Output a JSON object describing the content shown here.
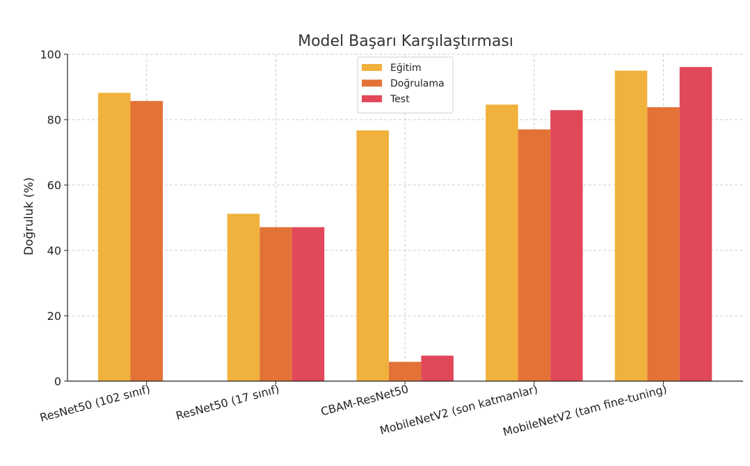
{
  "chart_data": {
    "type": "bar",
    "title": "Model Başarı Karşılaştırması",
    "xlabel": "",
    "ylabel": "Doğruluk (%)",
    "ylim": [
      0,
      100
    ],
    "yticks": [
      "0",
      "20",
      "40",
      "60",
      "80",
      "100"
    ],
    "grid": true,
    "legend_position": "top-center",
    "categories": [
      "ResNet50 (102 sınıf)",
      "ResNet50 (17 sınıf)",
      "CBAM-ResNet50",
      "MobileNetV2 (son katmanlar)",
      "MobileNetV2 (tam fine-tuning)"
    ],
    "series": [
      {
        "name": "Eğitim",
        "color": "#f0b13d",
        "values": [
          88.2,
          51.2,
          76.7,
          84.6,
          95.0
        ]
      },
      {
        "name": "Doğrulama",
        "color": "#e37236",
        "values": [
          85.7,
          47.1,
          5.9,
          77.0,
          83.8
        ]
      },
      {
        "name": "Test",
        "color": "#e1485a",
        "values": [
          null,
          47.1,
          7.8,
          82.9,
          96.1
        ]
      }
    ]
  }
}
